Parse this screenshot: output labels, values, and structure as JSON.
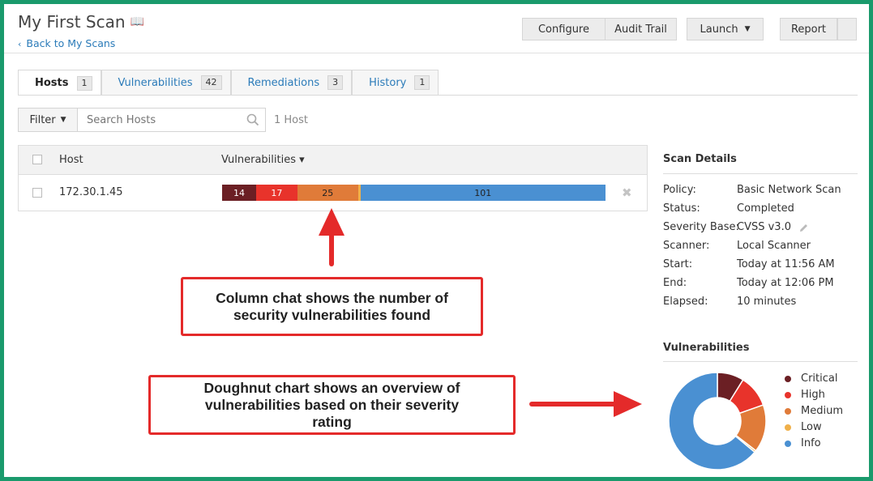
{
  "header": {
    "title": "My First Scan",
    "back_link": "Back to My Scans",
    "buttons": {
      "configure": "Configure",
      "audit_trail": "Audit Trail",
      "launch": "Launch",
      "report": "Report"
    }
  },
  "tabs": [
    {
      "label": "Hosts",
      "count": "1"
    },
    {
      "label": "Vulnerabilities",
      "count": "42"
    },
    {
      "label": "Remediations",
      "count": "3"
    },
    {
      "label": "History",
      "count": "1"
    }
  ],
  "filter": {
    "label": "Filter",
    "search_placeholder": "Search Hosts",
    "host_count": "1 Host"
  },
  "table": {
    "columns": [
      "Host",
      "Vulnerabilities ▾"
    ],
    "rows": [
      {
        "host": "172.30.1.45",
        "critical": "14",
        "high": "17",
        "medium": "25",
        "info": "101"
      }
    ]
  },
  "scan_details": {
    "title": "Scan Details",
    "items": [
      {
        "label": "Policy:",
        "value": "Basic Network Scan"
      },
      {
        "label": "Status:",
        "value": "Completed"
      },
      {
        "label": "Severity Base:",
        "value": "CVSS v3.0"
      },
      {
        "label": "Scanner:",
        "value": "Local Scanner"
      },
      {
        "label": "Start:",
        "value": "Today at 11:56 AM"
      },
      {
        "label": "End:",
        "value": "Today at 12:06 PM"
      },
      {
        "label": "Elapsed:",
        "value": "10 minutes"
      }
    ]
  },
  "vulnerabilities_panel": {
    "title": "Vulnerabilities",
    "legend": [
      "Critical",
      "High",
      "Medium",
      "Low",
      "Info"
    ]
  },
  "colors": {
    "critical": "#6b1f24",
    "high": "#e8332b",
    "medium": "#e07b39",
    "low": "#f0b04a",
    "info": "#4a90d2",
    "callout_border": "#e42a2a",
    "frame": "#1a9a6c"
  },
  "chart_data": {
    "type": "pie",
    "categories": [
      "Critical",
      "High",
      "Medium",
      "Low",
      "Info"
    ],
    "values": [
      14,
      17,
      25,
      1,
      101
    ]
  },
  "annotations": {
    "column_chart_note": "Column chat shows the number of security vulnerabilities found",
    "doughnut_note": "Doughnut chart shows an overview of vulnerabilities based on their severity rating"
  }
}
